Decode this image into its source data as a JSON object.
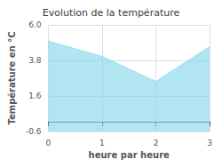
{
  "chart_data": {
    "type": "area",
    "title": "Evolution de la température",
    "xlabel": "heure par heure",
    "ylabel": "Température en °C",
    "x": [
      0,
      1,
      2,
      3
    ],
    "values": [
      5.0,
      4.05,
      2.5,
      4.65
    ],
    "color": "#7dd4ea",
    "line_style": "dotted",
    "xlim": [
      0,
      3
    ],
    "xticks": [
      0,
      1,
      2,
      3
    ],
    "ylim": [
      -0.6,
      6.0
    ],
    "yticks": [
      -0.6,
      1.6,
      3.8,
      {
        "value": 6.0,
        "label": "6.0"
      }
    ],
    "grid": true
  }
}
